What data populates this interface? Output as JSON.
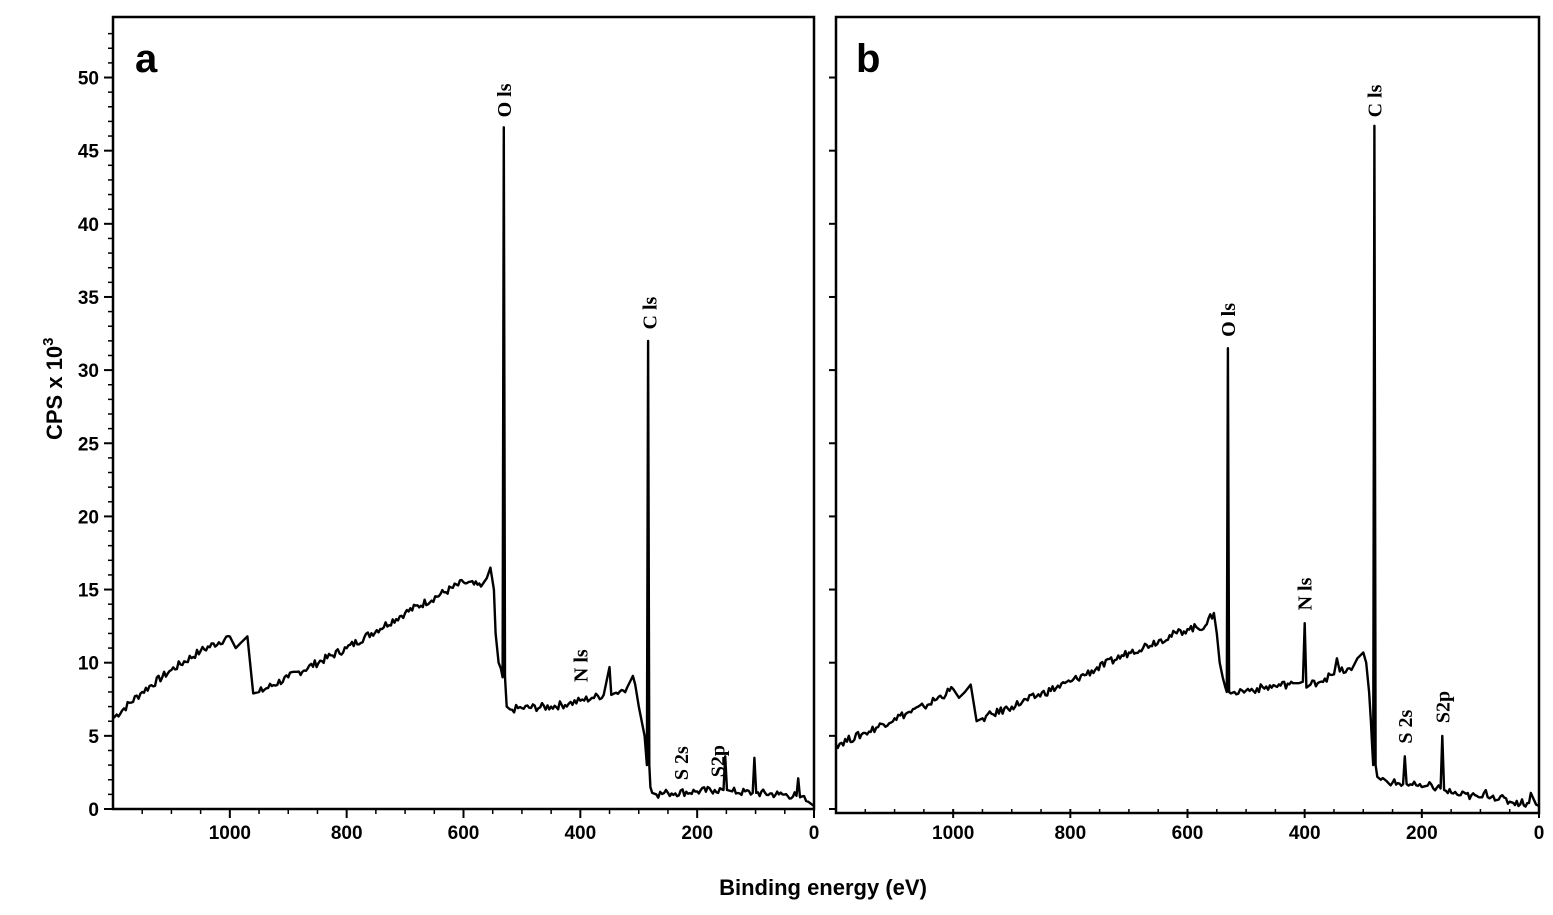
{
  "chart_data": [
    {
      "type": "line",
      "panel": "a",
      "xlabel": "Binding energy (eV)",
      "ylabel": "CPS x 10",
      "ylabel_sup": "3",
      "xlim": [
        1200,
        0
      ],
      "ylim": [
        0,
        54
      ],
      "x_ticks": [
        1000,
        800,
        600,
        400,
        200,
        0
      ],
      "y_ticks": [
        0,
        5,
        10,
        15,
        20,
        25,
        30,
        35,
        40,
        45,
        50
      ],
      "series": [
        {
          "x": [
            1200,
            1150,
            1100,
            1050,
            1000,
            990,
            980,
            970,
            960,
            950,
            900,
            800,
            700,
            600,
            570,
            560,
            554,
            548,
            545,
            540,
            536,
            533,
            531,
            529,
            526,
            520,
            500,
            450,
            420,
            400,
            380,
            360,
            350,
            347,
            342,
            320,
            310,
            306,
            300,
            290,
            286,
            284,
            282,
            280,
            277,
            270,
            250,
            200,
            170,
            155,
            152,
            149,
            140,
            105,
            102,
            99,
            60,
            30,
            27,
            24,
            10,
            0
          ],
          "y": [
            6.2,
            8.0,
            9.5,
            10.8,
            11.8,
            11.0,
            11.4,
            11.8,
            7.9,
            8.0,
            9.0,
            11.0,
            13.4,
            15.5,
            15.2,
            15.8,
            16.5,
            15.0,
            12.0,
            10.0,
            9.6,
            9.0,
            46.6,
            9.0,
            7.0,
            6.8,
            6.9,
            7.0,
            7.2,
            7.4,
            7.6,
            7.8,
            9.7,
            7.8,
            7.9,
            8.3,
            9.1,
            8.5,
            7.0,
            5.0,
            3.0,
            32.0,
            3.0,
            1.5,
            1.1,
            1.0,
            1.1,
            1.2,
            1.3,
            1.3,
            3.6,
            1.3,
            1.2,
            1.1,
            3.5,
            1.1,
            1.0,
            0.9,
            2.1,
            0.8,
            0.5,
            0.2
          ]
        }
      ],
      "annotations": [
        {
          "text": "O ls",
          "x": 531,
          "y": 47
        },
        {
          "text": "C ls",
          "x": 282,
          "y": 32.5
        },
        {
          "text": "N ls",
          "x": 400,
          "y": 8.4
        },
        {
          "text": "S 2s",
          "x": 228,
          "y": 1.7
        },
        {
          "text": "S2p",
          "x": 165,
          "y": 1.9
        }
      ]
    },
    {
      "type": "line",
      "panel": "b",
      "xlabel": "Binding energy (eV)",
      "xlim": [
        1200,
        0
      ],
      "ylim": [
        0,
        54
      ],
      "x_ticks": [
        1000,
        800,
        600,
        400,
        200,
        0
      ],
      "series": [
        {
          "x": [
            1200,
            1150,
            1100,
            1050,
            1000,
            990,
            980,
            970,
            960,
            950,
            900,
            800,
            700,
            600,
            570,
            555,
            550,
            545,
            540,
            536,
            533,
            531,
            529,
            526,
            520,
            500,
            450,
            420,
            410,
            403,
            400,
            397,
            390,
            350,
            345,
            340,
            320,
            310,
            300,
            295,
            290,
            287,
            285,
            283,
            281,
            279,
            276,
            270,
            250,
            232,
            229,
            226,
            200,
            190,
            168,
            165,
            162,
            140,
            100,
            97,
            94,
            50,
            20,
            17,
            14,
            5,
            0
          ],
          "y": [
            4.4,
            5.2,
            6.2,
            7.0,
            8.2,
            7.6,
            8.0,
            8.5,
            6.0,
            6.2,
            7.0,
            8.7,
            10.7,
            12.3,
            12.5,
            13.4,
            12.0,
            10.0,
            9.0,
            8.4,
            8.0,
            31.5,
            8.0,
            7.9,
            8.0,
            8.1,
            8.4,
            8.6,
            8.6,
            8.7,
            12.7,
            8.3,
            8.5,
            9.2,
            10.3,
            9.4,
            9.5,
            10.3,
            10.7,
            10.0,
            8.0,
            6.0,
            4.5,
            3.0,
            46.7,
            3.0,
            2.2,
            2.0,
            1.8,
            1.7,
            3.6,
            1.7,
            1.5,
            1.6,
            1.4,
            5.0,
            1.3,
            1.0,
            0.8,
            0.8,
            1.1,
            0.5,
            0.4,
            0.4,
            1.1,
            0.3,
            0.2
          ]
        }
      ],
      "annotations": [
        {
          "text": "C ls",
          "x": 281,
          "y": 47
        },
        {
          "text": "O ls",
          "x": 531,
          "y": 32
        },
        {
          "text": "N ls",
          "x": 400,
          "y": 13.3
        },
        {
          "text": "S 2s",
          "x": 229,
          "y": 4.2
        },
        {
          "text": "S2p",
          "x": 165,
          "y": 5.6
        }
      ]
    }
  ]
}
